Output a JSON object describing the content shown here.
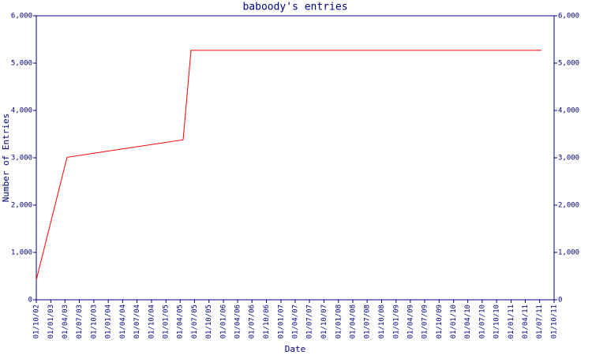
{
  "chart_data": {
    "type": "line",
    "title": "baboody's entries",
    "x_label": "Date",
    "y_label": "Number of Entries",
    "x": [
      "2002-10-01",
      "2003-04-14",
      "2005-04-20",
      "2005-06-09",
      "2011-07-12"
    ],
    "values": [
      420,
      3010,
      3380,
      5270,
      5270
    ],
    "color": "#ff0000",
    "xlim": [
      "2002-10-01",
      "2011-10-01"
    ],
    "xticks": [
      {
        "value": "2002-10-01",
        "label": "01/10/02"
      },
      {
        "value": "2003-01-01",
        "label": "01/01/03"
      },
      {
        "value": "2003-04-01",
        "label": "01/04/03"
      },
      {
        "value": "2003-07-01",
        "label": "01/07/03"
      },
      {
        "value": "2003-10-01",
        "label": "01/10/03"
      },
      {
        "value": "2004-01-01",
        "label": "01/01/04"
      },
      {
        "value": "2004-04-01",
        "label": "01/04/04"
      },
      {
        "value": "2004-07-01",
        "label": "01/07/04"
      },
      {
        "value": "2004-10-01",
        "label": "01/10/04"
      },
      {
        "value": "2005-01-01",
        "label": "01/01/05"
      },
      {
        "value": "2005-04-01",
        "label": "01/04/05"
      },
      {
        "value": "2005-07-01",
        "label": "01/07/05"
      },
      {
        "value": "2005-10-01",
        "label": "01/10/05"
      },
      {
        "value": "2006-01-01",
        "label": "01/01/06"
      },
      {
        "value": "2006-04-01",
        "label": "01/04/06"
      },
      {
        "value": "2006-07-01",
        "label": "01/07/06"
      },
      {
        "value": "2006-10-01",
        "label": "01/10/06"
      },
      {
        "value": "2007-01-01",
        "label": "01/01/07"
      },
      {
        "value": "2007-04-01",
        "label": "01/04/07"
      },
      {
        "value": "2007-07-01",
        "label": "01/07/07"
      },
      {
        "value": "2007-10-01",
        "label": "01/10/07"
      },
      {
        "value": "2008-01-01",
        "label": "01/01/08"
      },
      {
        "value": "2008-04-01",
        "label": "01/04/08"
      },
      {
        "value": "2008-07-01",
        "label": "01/07/08"
      },
      {
        "value": "2008-10-01",
        "label": "01/10/08"
      },
      {
        "value": "2009-01-01",
        "label": "01/01/09"
      },
      {
        "value": "2009-04-01",
        "label": "01/04/09"
      },
      {
        "value": "2009-07-01",
        "label": "01/07/09"
      },
      {
        "value": "2009-10-01",
        "label": "01/10/09"
      },
      {
        "value": "2010-01-01",
        "label": "01/01/10"
      },
      {
        "value": "2010-04-01",
        "label": "01/04/10"
      },
      {
        "value": "2010-07-01",
        "label": "01/07/10"
      },
      {
        "value": "2010-10-01",
        "label": "01/10/10"
      },
      {
        "value": "2011-01-01",
        "label": "01/01/11"
      },
      {
        "value": "2011-04-01",
        "label": "01/04/11"
      },
      {
        "value": "2011-07-01",
        "label": "01/07/11"
      },
      {
        "value": "2011-10-01",
        "label": "01/10/11"
      }
    ],
    "ylim": [
      0,
      6000
    ],
    "yticks": [
      0,
      {
        "value": 1000,
        "label": "1,000"
      },
      {
        "value": 2000,
        "label": "2,000"
      },
      {
        "value": 3000,
        "label": "3,000"
      },
      {
        "value": 4000,
        "label": "4,000"
      },
      {
        "value": 5000,
        "label": "5,000"
      },
      {
        "value": 6000,
        "label": "6,000"
      }
    ],
    "y2lim": [
      0,
      6000
    ],
    "y2ticks": [
      0,
      {
        "value": 1000,
        "label": "1,000"
      },
      {
        "value": 2000,
        "label": "2,000"
      },
      {
        "value": 3000,
        "label": "3,000"
      },
      {
        "value": 4000,
        "label": "4,000"
      },
      {
        "value": 5000,
        "label": "5,000"
      },
      {
        "value": 6000,
        "label": "6,000"
      }
    ],
    "grid": false
  }
}
